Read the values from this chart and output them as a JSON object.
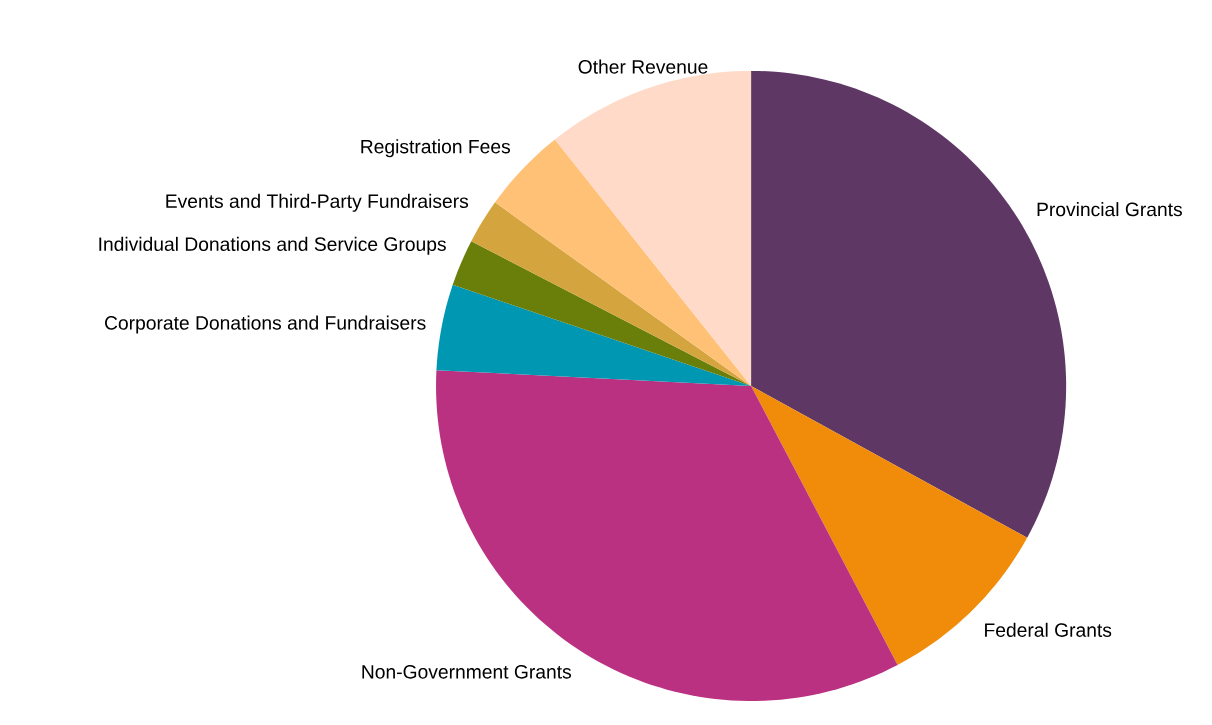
{
  "chart_data": {
    "type": "pie",
    "categories": [
      "Provincial Grants",
      "Federal Grants",
      "Non-Government Grants",
      "Corporate Donations and Fundraisers",
      "Individual Donations and Service Groups",
      "Events and Third-Party Fundraisers",
      "Registration Fees",
      "Other Revenue"
    ],
    "values": [
      33,
      9.3,
      33.5,
      4.4,
      2.4,
      2.3,
      4.4,
      10.7
    ],
    "colors": [
      "#5e3765",
      "#f08c0a",
      "#bb3182",
      "#0097b2",
      "#6a7f0a",
      "#d4a53f",
      "#ffc176",
      "#ffdac8"
    ]
  }
}
